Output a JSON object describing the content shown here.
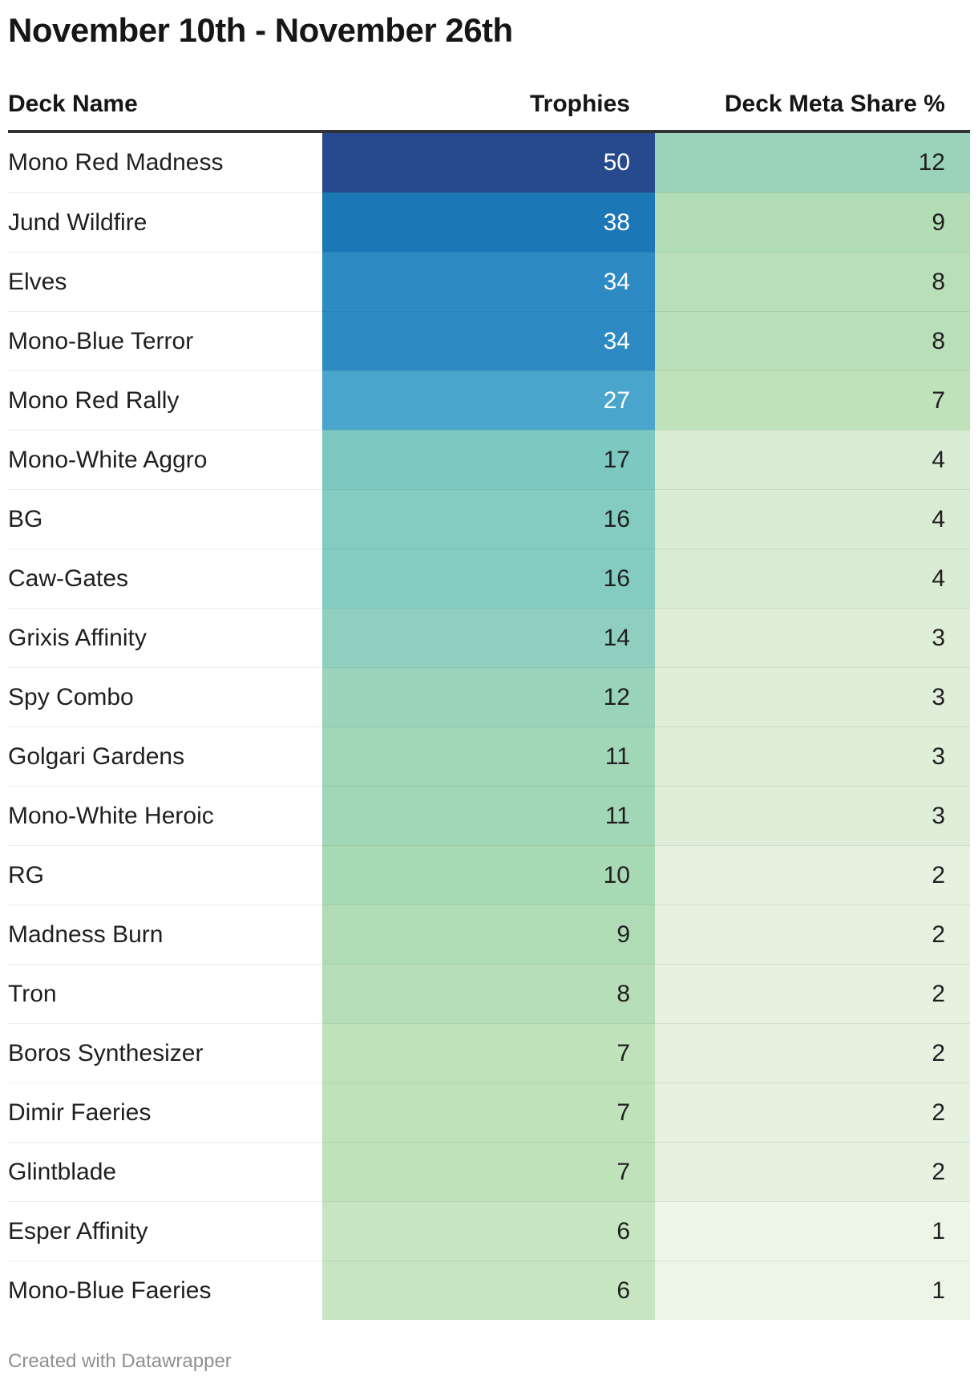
{
  "title": "November 10th - November 26th",
  "table": {
    "columns": {
      "deck": "Deck Name",
      "trophies": "Trophies",
      "meta": "Deck Meta Share %"
    },
    "rows": [
      {
        "deck": "Mono Red Madness",
        "trophies": "50",
        "meta": "12",
        "trophies_bg": "#27498e",
        "trophies_text": "#ffffff",
        "meta_bg": "#9ad3b9",
        "meta_text": "#1f1f1f"
      },
      {
        "deck": "Jund Wildfire",
        "trophies": "38",
        "meta": "9",
        "trophies_bg": "#1c77b7",
        "trophies_text": "#ffffff",
        "meta_bg": "#b2ddb5",
        "meta_text": "#1f1f1f"
      },
      {
        "deck": "Elves",
        "trophies": "34",
        "meta": "8",
        "trophies_bg": "#2d8ac2",
        "trophies_text": "#ffffff",
        "meta_bg": "#b9dfb8",
        "meta_text": "#1f1f1f"
      },
      {
        "deck": "Mono-Blue Terror",
        "trophies": "34",
        "meta": "8",
        "trophies_bg": "#2d8ac2",
        "trophies_text": "#ffffff",
        "meta_bg": "#b9dfb8",
        "meta_text": "#1f1f1f"
      },
      {
        "deck": "Mono Red Rally",
        "trophies": "27",
        "meta": "7",
        "trophies_bg": "#4aa5cc",
        "trophies_text": "#ffffff",
        "meta_bg": "#c0e2bb",
        "meta_text": "#1f1f1f"
      },
      {
        "deck": "Mono-White Aggro",
        "trophies": "17",
        "meta": "4",
        "trophies_bg": "#7dc9c2",
        "trophies_text": "#1f1f1f",
        "meta_bg": "#d9ecd3",
        "meta_text": "#1f1f1f"
      },
      {
        "deck": "BG",
        "trophies": "16",
        "meta": "4",
        "trophies_bg": "#84ccc1",
        "trophies_text": "#1f1f1f",
        "meta_bg": "#d9ecd3",
        "meta_text": "#1f1f1f"
      },
      {
        "deck": "Caw-Gates",
        "trophies": "16",
        "meta": "4",
        "trophies_bg": "#84ccc1",
        "trophies_text": "#1f1f1f",
        "meta_bg": "#d9ecd3",
        "meta_text": "#1f1f1f"
      },
      {
        "deck": "Grixis Affinity",
        "trophies": "14",
        "meta": "3",
        "trophies_bg": "#90cfbf",
        "trophies_text": "#1f1f1f",
        "meta_bg": "#dfeed8",
        "meta_text": "#1f1f1f"
      },
      {
        "deck": "Spy Combo",
        "trophies": "12",
        "meta": "3",
        "trophies_bg": "#99d3ba",
        "trophies_text": "#1f1f1f",
        "meta_bg": "#dfeed8",
        "meta_text": "#1f1f1f"
      },
      {
        "deck": "Golgari Gardens",
        "trophies": "11",
        "meta": "3",
        "trophies_bg": "#a1d6b7",
        "trophies_text": "#1f1f1f",
        "meta_bg": "#dfeed8",
        "meta_text": "#1f1f1f"
      },
      {
        "deck": "Mono-White Heroic",
        "trophies": "11",
        "meta": "3",
        "trophies_bg": "#a1d6b7",
        "trophies_text": "#1f1f1f",
        "meta_bg": "#dfeed8",
        "meta_text": "#1f1f1f"
      },
      {
        "deck": "RG",
        "trophies": "10",
        "meta": "2",
        "trophies_bg": "#a8d9b5",
        "trophies_text": "#1f1f1f",
        "meta_bg": "#e6f1df",
        "meta_text": "#1f1f1f"
      },
      {
        "deck": "Madness Burn",
        "trophies": "9",
        "meta": "2",
        "trophies_bg": "#b0dcb5",
        "trophies_text": "#1f1f1f",
        "meta_bg": "#e6f1df",
        "meta_text": "#1f1f1f"
      },
      {
        "deck": "Tron",
        "trophies": "8",
        "meta": "2",
        "trophies_bg": "#b7dfb7",
        "trophies_text": "#1f1f1f",
        "meta_bg": "#e6f1df",
        "meta_text": "#1f1f1f"
      },
      {
        "deck": "Boros Synthesizer",
        "trophies": "7",
        "meta": "2",
        "trophies_bg": "#bfe2bb",
        "trophies_text": "#1f1f1f",
        "meta_bg": "#e6f1df",
        "meta_text": "#1f1f1f"
      },
      {
        "deck": "Dimir Faeries",
        "trophies": "7",
        "meta": "2",
        "trophies_bg": "#bfe2bb",
        "trophies_text": "#1f1f1f",
        "meta_bg": "#e6f1df",
        "meta_text": "#1f1f1f"
      },
      {
        "deck": "Glintblade",
        "trophies": "7",
        "meta": "2",
        "trophies_bg": "#bfe2bb",
        "trophies_text": "#1f1f1f",
        "meta_bg": "#e6f1df",
        "meta_text": "#1f1f1f"
      },
      {
        "deck": "Esper Affinity",
        "trophies": "6",
        "meta": "1",
        "trophies_bg": "#c7e5c1",
        "trophies_text": "#1f1f1f",
        "meta_bg": "#edf5e7",
        "meta_text": "#1f1f1f"
      },
      {
        "deck": "Mono-Blue Faeries",
        "trophies": "6",
        "meta": "1",
        "trophies_bg": "#c7e5c1",
        "trophies_text": "#1f1f1f",
        "meta_bg": "#edf5e7",
        "meta_text": "#1f1f1f"
      }
    ]
  },
  "footer": {
    "credit": "Created with Datawrapper"
  },
  "colors": {
    "header_rule": "#303234",
    "heat_scale_max": "#27498e",
    "heat_scale_mid": "#7dc9c2",
    "heat_scale_min": "#edf5e7",
    "text_dark": "#1f1f1f",
    "text_light": "#ffffff",
    "footer_text": "#8f8f8f"
  },
  "chart_data": {
    "type": "table",
    "title": "November 10th - November 26th",
    "columns": [
      "Deck Name",
      "Trophies",
      "Deck Meta Share %"
    ],
    "heatmap": true,
    "rows": [
      [
        "Mono Red Madness",
        50,
        12
      ],
      [
        "Jund Wildfire",
        38,
        9
      ],
      [
        "Elves",
        34,
        8
      ],
      [
        "Mono-Blue Terror",
        34,
        8
      ],
      [
        "Mono Red Rally",
        27,
        7
      ],
      [
        "Mono-White Aggro",
        17,
        4
      ],
      [
        "BG",
        16,
        4
      ],
      [
        "Caw-Gates",
        16,
        4
      ],
      [
        "Grixis Affinity",
        14,
        3
      ],
      [
        "Spy Combo",
        12,
        3
      ],
      [
        "Golgari Gardens",
        11,
        3
      ],
      [
        "Mono-White Heroic",
        11,
        3
      ],
      [
        "RG",
        10,
        2
      ],
      [
        "Madness Burn",
        9,
        2
      ],
      [
        "Tron",
        8,
        2
      ],
      [
        "Boros Synthesizer",
        7,
        2
      ],
      [
        "Dimir Faeries",
        7,
        2
      ],
      [
        "Glintblade",
        7,
        2
      ],
      [
        "Esper Affinity",
        6,
        1
      ],
      [
        "Mono-Blue Faeries",
        6,
        1
      ]
    ]
  }
}
